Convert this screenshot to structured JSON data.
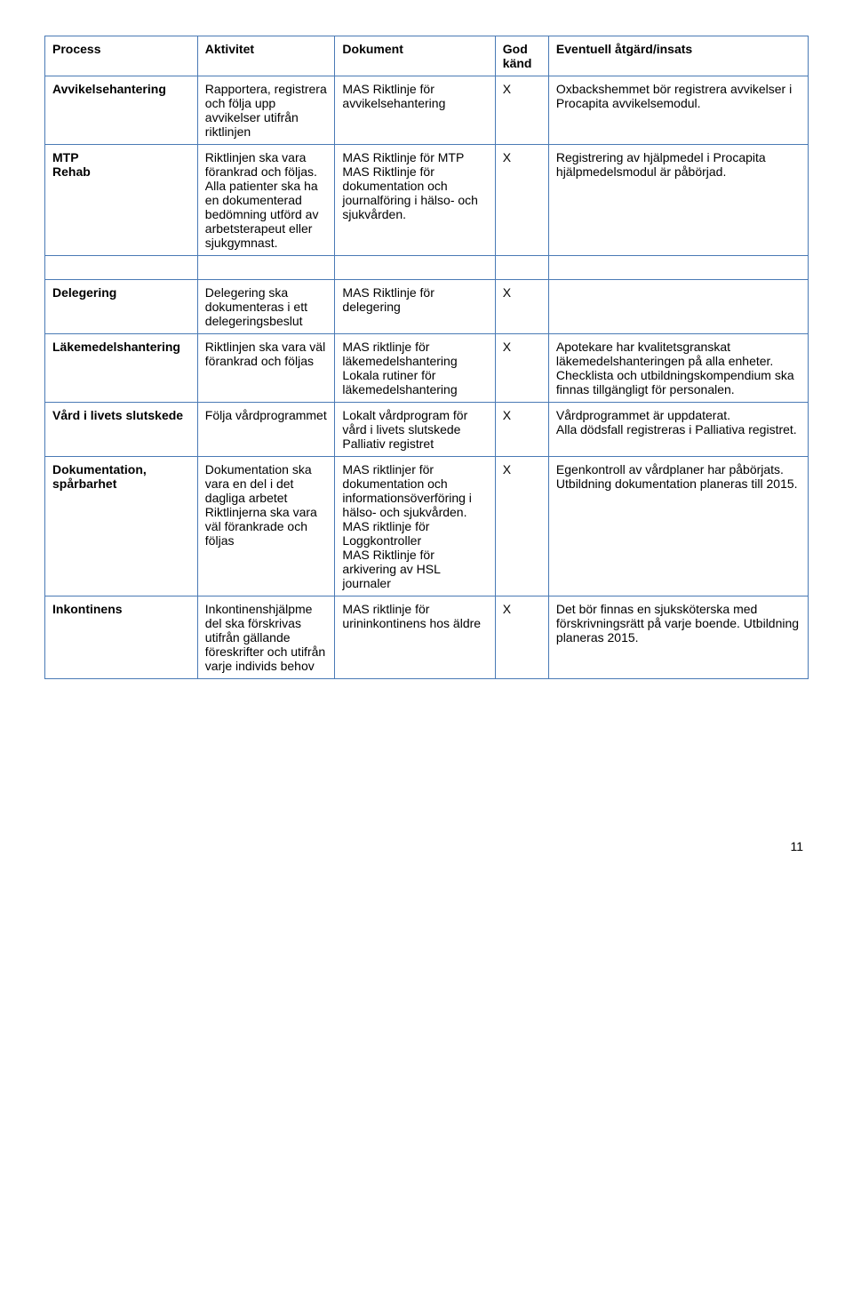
{
  "headers": {
    "c1": "Process",
    "c2": "Aktivitet",
    "c3": "Dokument",
    "c4": "God känd",
    "c5": "Eventuell åtgärd/insats"
  },
  "rows": [
    {
      "c1": "Avvikelsehantering",
      "c2": "Rapportera, registrera och följa upp avvikelser utifrån riktlinjen",
      "c3": " MAS Riktlinje för avvikelsehantering",
      "c4": "X",
      "c5": "Oxbackshemmet bör registrera avvikelser i Procapita avvikelsemodul."
    },
    {
      "c1": "MTP\nRehab",
      "c2": "Riktlinjen ska vara förankrad och följas.\nAlla patienter ska ha en dokumenterad bedömning utförd av arbetsterapeut eller sjukgymnast.",
      "c3": "MAS Riktlinje för MTP\nMAS Riktlinje för dokumentation och journalföring i hälso- och sjukvården.",
      "c4": "X",
      "c5": "Registrering av hjälpmedel i Procapita hjälpmedelsmodul är påbörjad."
    }
  ],
  "rows2": [
    {
      "c1": "Delegering",
      "c2": "Delegering ska dokumenteras i ett delegeringsbeslut",
      "c3": " MAS Riktlinje för delegering",
      "c4": "X",
      "c5": ""
    },
    {
      "c1": "Läkemedelshantering",
      "c2": "Riktlinjen ska vara väl förankrad och följas",
      "c3": "MAS riktlinje för läkemedelshantering\nLokala rutiner för läkemedelshantering",
      "c4": "X",
      "c5": "Apotekare har kvalitetsgranskat läkemedelshanteringen på alla enheter.\nChecklista och utbildningskompendium ska finnas tillgängligt för personalen."
    },
    {
      "c1": "Vård i livets slutskede",
      "c2": "Följa vårdprogrammet",
      "c3": "Lokalt vårdprogram för vård i livets slutskede\nPalliativ registret",
      "c4": "X",
      "c5": "Vårdprogrammet är uppdaterat.\nAlla dödsfall registreras i Palliativa registret."
    },
    {
      "c1": "Dokumentation, spårbarhet",
      "c2": "Dokumentation ska vara en del i det dagliga arbetet\nRiktlinjerna ska vara väl förankrade och följas",
      "c3": "MAS riktlinjer för dokumentation och informationsöverföring i hälso- och sjukvården.\nMAS riktlinje för Loggkontroller\nMAS Riktlinje för arkivering av HSL journaler",
      "c4": "X",
      "c5": "Egenkontroll av vårdplaner har påbörjats. Utbildning dokumentation planeras till 2015."
    },
    {
      "c1": "Inkontinens",
      "c2": "Inkontinenshjälpme del ska förskrivas utifrån gällande föreskrifter och utifrån varje individs behov",
      "c3": "MAS riktlinje för urininkontinens hos äldre",
      "c4": "X",
      "c5": "Det bör finnas en sjuksköterska med förskrivningsrätt på varje boende. Utbildning planeras 2015."
    }
  ],
  "pagenum": "11"
}
